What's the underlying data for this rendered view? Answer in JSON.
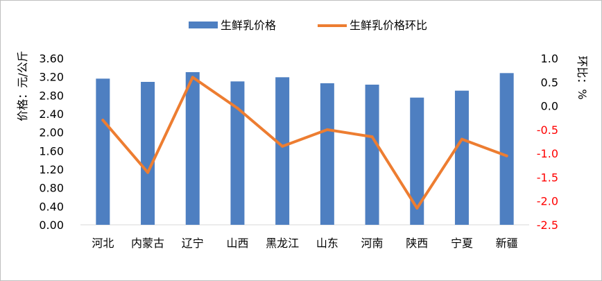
{
  "chart_data": {
    "type": "bar",
    "categories": [
      "河北",
      "内蒙古",
      "辽宁",
      "山西",
      "黑龙江",
      "山东",
      "河南",
      "陕西",
      "宁夏",
      "新疆"
    ],
    "series": [
      {
        "name": "生鲜乳价格",
        "type": "bar",
        "axis": "left",
        "values": [
          3.16,
          3.09,
          3.3,
          3.1,
          3.19,
          3.06,
          3.03,
          2.75,
          2.9,
          3.28
        ]
      },
      {
        "name": "生鲜乳价格环比",
        "type": "line",
        "axis": "right",
        "values": [
          -0.3,
          -1.4,
          0.6,
          -0.05,
          -0.85,
          -0.5,
          -0.65,
          -2.15,
          -0.7,
          -1.05
        ]
      }
    ],
    "ylabel": "价格：元/公斤",
    "ylabel_right": "环比：%",
    "ylim": [
      0,
      3.6
    ],
    "ylim_right": [
      -2.5,
      1.0
    ],
    "yticks": [
      "0.00",
      "0.40",
      "0.80",
      "1.20",
      "1.60",
      "2.00",
      "2.40",
      "2.80",
      "3.20",
      "3.60"
    ],
    "yticks_right": [
      "1.0",
      "0.5",
      "0.0",
      "-0.5",
      "-1.0",
      "-1.5",
      "-2.0",
      "-2.5"
    ],
    "yticks_right_values": [
      1.0,
      0.5,
      0.0,
      -0.5,
      -1.0,
      -1.5,
      -2.0,
      -2.5
    ],
    "yticks_right_negative_color": "#ff0000",
    "yticks_right_positive_color": "#000000",
    "bar_color": "#4e7fc1",
    "line_color": "#ed7d31",
    "grid": false,
    "legend_position": "top-center"
  }
}
